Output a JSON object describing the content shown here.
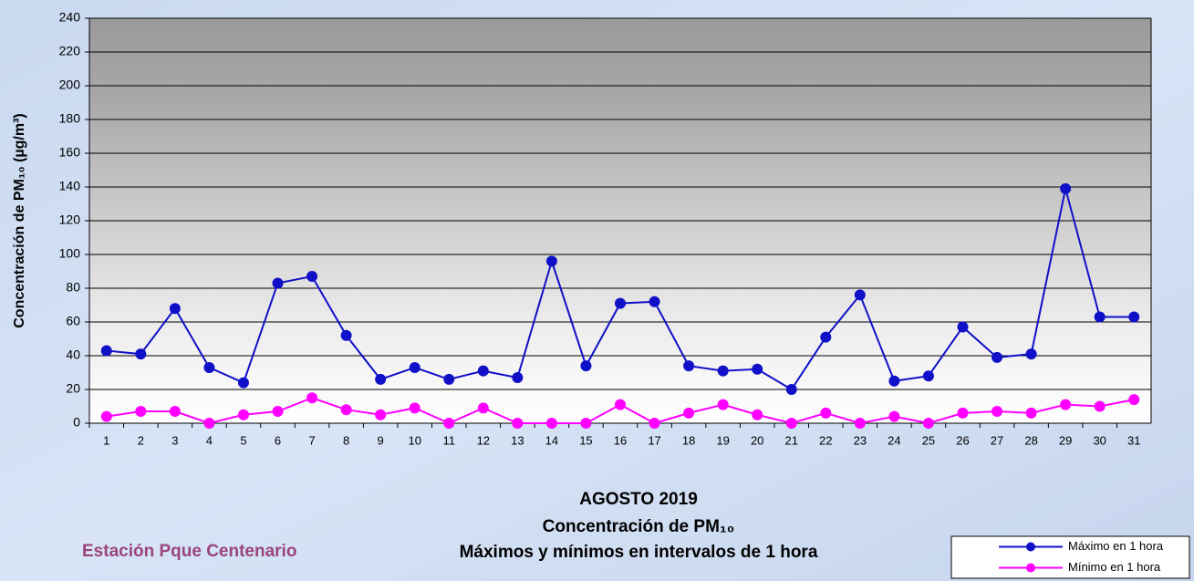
{
  "chart_data": {
    "type": "line",
    "title": [
      "AGOSTO 2019",
      "Concentración de PM₁₀",
      "Máximos y mínimos en intervalos de 1 hora"
    ],
    "station": "Estación Pque Centenario",
    "ylabel": "Concentración de PM₁₀ (µg/m³)",
    "categories": [
      "1",
      "2",
      "3",
      "4",
      "5",
      "6",
      "7",
      "8",
      "9",
      "10",
      "11",
      "12",
      "13",
      "14",
      "15",
      "16",
      "17",
      "18",
      "19",
      "20",
      "21",
      "22",
      "23",
      "24",
      "25",
      "26",
      "27",
      "28",
      "29",
      "30",
      "31"
    ],
    "series": [
      {
        "name": "Máximo en 1 hora",
        "color": "#1010c8",
        "values": [
          43,
          41,
          68,
          33,
          24,
          83,
          87,
          52,
          26,
          33,
          26,
          31,
          27,
          96,
          34,
          71,
          72,
          34,
          31,
          32,
          20,
          51,
          76,
          25,
          28,
          57,
          39,
          41,
          139,
          63,
          63
        ]
      },
      {
        "name": "Mínimo en 1 hora",
        "color": "#ff00ff",
        "values": [
          4,
          7,
          7,
          0,
          5,
          7,
          15,
          8,
          5,
          9,
          0,
          9,
          0,
          0,
          0,
          11,
          0,
          6,
          11,
          5,
          0,
          6,
          0,
          4,
          0,
          6,
          7,
          6,
          11,
          10,
          14
        ]
      }
    ],
    "ylim": [
      0,
      240
    ],
    "yticks": [
      0,
      20,
      40,
      60,
      80,
      100,
      120,
      140,
      160,
      180,
      200,
      220,
      240
    ],
    "grid": true,
    "legend": "lower right"
  }
}
